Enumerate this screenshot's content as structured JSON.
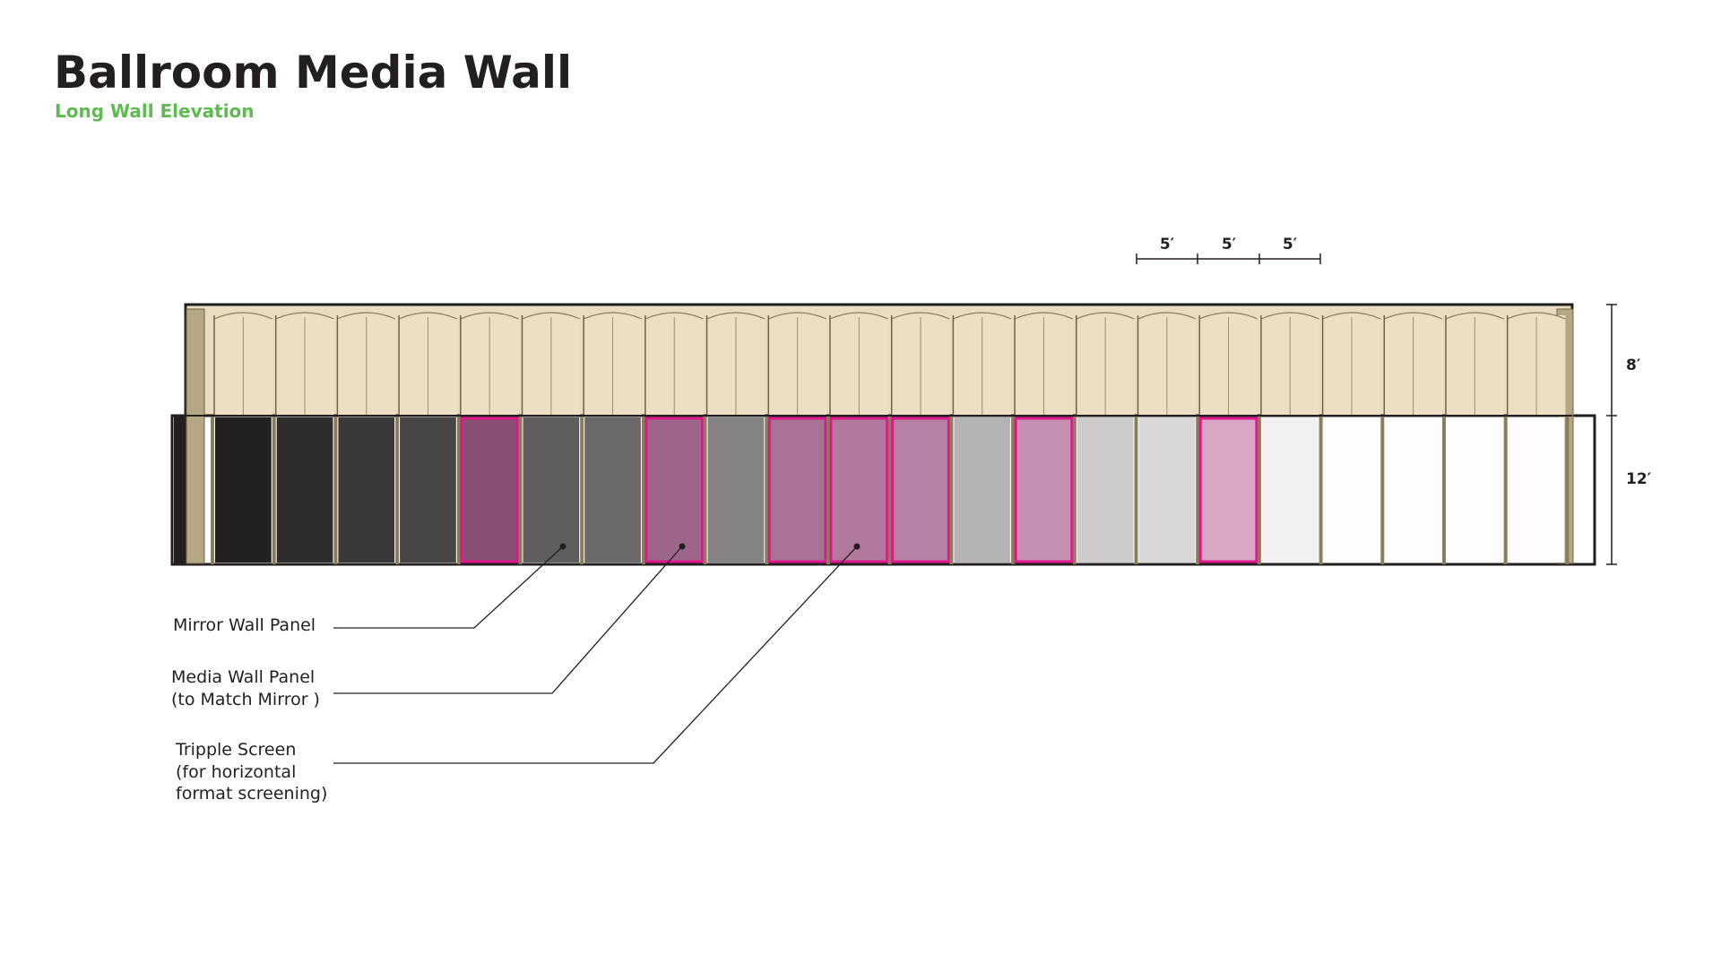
{
  "header": {
    "title": "Ballroom Media Wall",
    "subtitle": "Long Wall Elevation"
  },
  "dimensions": {
    "top": [
      "5′",
      "5′",
      "5′"
    ],
    "upper_height": "8′",
    "lower_height": "12′"
  },
  "callouts": [
    {
      "lines": [
        "Mirror Wall Panel"
      ]
    },
    {
      "lines": [
        "Media Wall Panel",
        "(to Match Mirror )"
      ]
    },
    {
      "lines": [
        "Tripple Screen",
        "(for horizontal",
        "format screening)"
      ]
    }
  ]
}
